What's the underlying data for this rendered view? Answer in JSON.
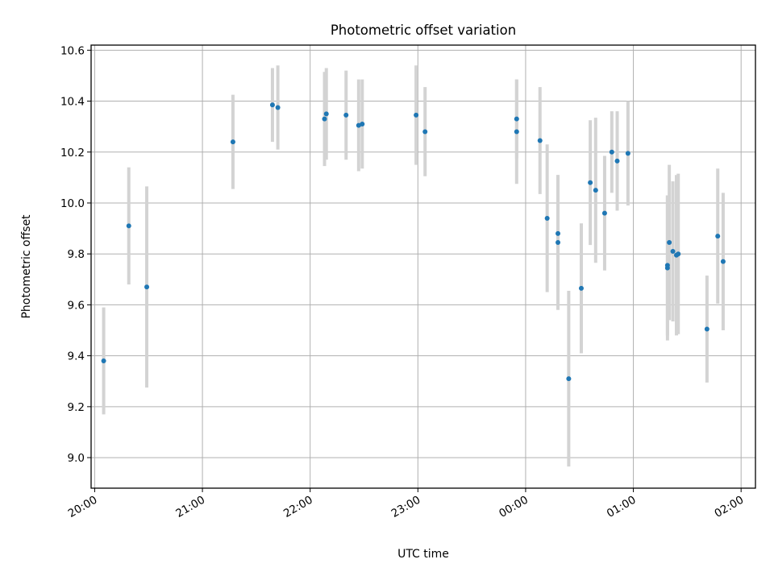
{
  "chart_data": {
    "type": "scatter",
    "title": "Photometric offset variation",
    "xlabel": "UTC time",
    "ylabel": "Photometric offset",
    "x_unit": "UTC time (HH:MM), values after midnight written as 24:xx",
    "xlim": [
      "19:58",
      "26:08"
    ],
    "ylim": [
      8.88,
      10.62
    ],
    "x_ticks": [
      "20:00",
      "21:00",
      "22:00",
      "23:00",
      "00:00",
      "01:00",
      "02:00"
    ],
    "y_ticks": [
      "9.0",
      "9.2",
      "9.4",
      "9.6",
      "9.8",
      "10.0",
      "10.2",
      "10.4",
      "10.6"
    ],
    "grid": true,
    "colors": {
      "point": "#1f77b4",
      "errorbar": "#d3d3d3",
      "grid": "#b0b0b0"
    },
    "points": [
      {
        "t": "20:05",
        "y": 9.38,
        "err": 0.21
      },
      {
        "t": "20:19",
        "y": 9.91,
        "err": 0.23
      },
      {
        "t": "20:29",
        "y": 9.67,
        "err": 0.395
      },
      {
        "t": "21:17",
        "y": 10.24,
        "err": 0.185
      },
      {
        "t": "21:39",
        "y": 10.385,
        "err": 0.145
      },
      {
        "t": "21:42",
        "y": 10.375,
        "err": 0.165
      },
      {
        "t": "22:08",
        "y": 10.33,
        "err": 0.185
      },
      {
        "t": "22:09",
        "y": 10.35,
        "err": 0.18
      },
      {
        "t": "22:20",
        "y": 10.345,
        "err": 0.175
      },
      {
        "t": "22:27",
        "y": 10.305,
        "err": 0.18
      },
      {
        "t": "22:29",
        "y": 10.31,
        "err": 0.175
      },
      {
        "t": "22:59",
        "y": 10.345,
        "err": 0.195
      },
      {
        "t": "23:04",
        "y": 10.28,
        "err": 0.175
      },
      {
        "t": "23:55",
        "y": 10.28,
        "err": 0.205
      },
      {
        "t": "23:55",
        "y": 10.33,
        "err": 0.155
      },
      {
        "t": "24:08",
        "y": 10.245,
        "err": 0.21
      },
      {
        "t": "24:12",
        "y": 9.94,
        "err": 0.29
      },
      {
        "t": "24:18",
        "y": 9.88,
        "err": 0.23
      },
      {
        "t": "24:18",
        "y": 9.845,
        "err": 0.265
      },
      {
        "t": "24:24",
        "y": 9.31,
        "err": 0.345
      },
      {
        "t": "24:31",
        "y": 9.665,
        "err": 0.255
      },
      {
        "t": "24:36",
        "y": 10.08,
        "err": 0.245
      },
      {
        "t": "24:39",
        "y": 10.05,
        "err": 0.285
      },
      {
        "t": "24:44",
        "y": 9.96,
        "err": 0.225
      },
      {
        "t": "24:48",
        "y": 10.2,
        "err": 0.16
      },
      {
        "t": "24:51",
        "y": 10.165,
        "err": 0.195
      },
      {
        "t": "24:57",
        "y": 10.195,
        "err": 0.205
      },
      {
        "t": "25:19",
        "y": 9.745,
        "err": 0.285
      },
      {
        "t": "25:19",
        "y": 9.755,
        "err": 0.275
      },
      {
        "t": "25:20",
        "y": 9.845,
        "err": 0.305
      },
      {
        "t": "25:22",
        "y": 9.81,
        "err": 0.275
      },
      {
        "t": "25:24",
        "y": 9.795,
        "err": 0.315
      },
      {
        "t": "25:25",
        "y": 9.8,
        "err": 0.315
      },
      {
        "t": "25:41",
        "y": 9.505,
        "err": 0.21
      },
      {
        "t": "25:47",
        "y": 9.87,
        "err": 0.265
      },
      {
        "t": "25:50",
        "y": 9.77,
        "err": 0.27
      }
    ]
  }
}
